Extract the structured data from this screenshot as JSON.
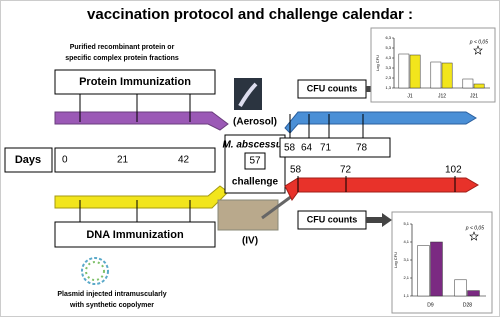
{
  "title": "vaccination protocol and challenge calendar :",
  "protein": {
    "note": [
      "Purified recombinant protein or",
      "specific complex protein fractions"
    ],
    "label": "Protein Immunization"
  },
  "days": {
    "label": "Days",
    "values": [
      "0",
      "21",
      "42"
    ]
  },
  "dna": {
    "label": "DNA Immunization",
    "note": [
      "Plasmid injected intramuscularly",
      "with synthetic copolymer"
    ]
  },
  "challenge": {
    "organism": "M. abscessus",
    "day": "57",
    "label": "challenge",
    "aerosol": "(Aerosol)",
    "iv": "(IV)"
  },
  "aerosol_days": [
    "58",
    "64",
    "71",
    "78"
  ],
  "iv_days": [
    "58",
    "72",
    "102"
  ],
  "cfu_top": "CFU counts",
  "cfu_bottom": "CFU counts",
  "insets": [
    {
      "type": "bar",
      "y_label": "Log CFU",
      "categories": [
        "J1",
        "J12",
        "J21"
      ],
      "series": [
        {
          "color": "#ffffff",
          "values": [
            4.7,
            3.9,
            2.2
          ]
        },
        {
          "color": "#f2e51c",
          "values": [
            4.6,
            3.8,
            1.7
          ]
        }
      ],
      "ylim": [
        1.3,
        6.3
      ],
      "yticks": [
        {
          "value": 6.3,
          "label": "6,3"
        },
        {
          "value": 5.3,
          "label": "5,3"
        },
        {
          "value": 4.3,
          "label": "4,3"
        },
        {
          "value": 3.3,
          "label": "3,3"
        },
        {
          "value": 2.3,
          "label": "2,3"
        },
        {
          "value": 1.3,
          "label": "1,3"
        }
      ],
      "annotation": "p < 0,05"
    },
    {
      "type": "bar",
      "y_label": "Log CFU",
      "categories": [
        "D9",
        "D28"
      ],
      "series": [
        {
          "color": "#ffffff",
          "values": [
            3.9,
            2.0
          ]
        },
        {
          "color": "#7b2a82",
          "values": [
            4.1,
            1.4
          ]
        }
      ],
      "ylim": [
        1.1,
        5.1
      ],
      "yticks": [
        {
          "value": 5.1,
          "label": "5,1"
        },
        {
          "value": 4.1,
          "label": "4,1"
        },
        {
          "value": 3.1,
          "label": "3,1"
        },
        {
          "value": 2.1,
          "label": "2,1"
        },
        {
          "value": 1.1,
          "label": "1,1"
        }
      ],
      "annotation": "p < 0,05"
    }
  ]
}
